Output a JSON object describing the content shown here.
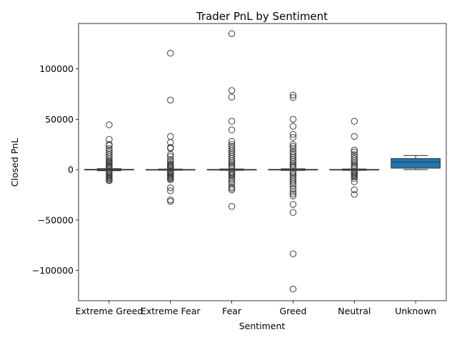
{
  "chart_data": {
    "type": "box",
    "title": "Trader PnL by Sentiment",
    "xlabel": "Sentiment",
    "ylabel": "Closed PnL",
    "ylim": [
      -130000,
      145000
    ],
    "yticks": [
      -100000,
      -50000,
      0,
      50000,
      100000
    ],
    "ytick_labels": [
      "−100000",
      "−50000",
      "0",
      "50000",
      "100000"
    ],
    "categories": [
      "Extreme Greed",
      "Extreme Fear",
      "Fear",
      "Greed",
      "Neutral",
      "Unknown"
    ],
    "grid": false,
    "legend": "none",
    "colors": {
      "box_fill": "#1f77b4",
      "line": "#3d3d3d",
      "axis": "#000000"
    },
    "boxes": [
      {
        "category": "Extreme Greed",
        "whisker_low": -1000,
        "q1": -300,
        "median": 0,
        "q3": 300,
        "whisker_high": 1000,
        "outliers": [
          44500,
          30000,
          25000,
          24000,
          21000,
          19000,
          17000,
          15000,
          13000,
          11000,
          9000,
          8000,
          7000,
          6000,
          5000,
          4000,
          3000,
          2500,
          2000,
          -2000,
          -3000,
          -4000,
          -5000,
          -6000,
          -7000,
          -8000,
          -9000,
          -10000,
          -11000
        ]
      },
      {
        "category": "Extreme Fear",
        "whisker_low": -600,
        "q1": -150,
        "median": 0,
        "q3": 150,
        "whisker_high": 600,
        "outliers": [
          115500,
          69000,
          33000,
          27000,
          22000,
          21000,
          15000,
          13000,
          10000,
          8000,
          6000,
          5000,
          4000,
          3000,
          2000,
          1500,
          -1500,
          -2000,
          -3000,
          -4000,
          -5000,
          -6000,
          -7000,
          -8000,
          -9000,
          -10000,
          -18000,
          -21000,
          -30000,
          -31500
        ]
      },
      {
        "category": "Fear",
        "whisker_low": -700,
        "q1": -200,
        "median": 0,
        "q3": 200,
        "whisker_high": 700,
        "outliers": [
          135000,
          78500,
          72000,
          48000,
          39500,
          28000,
          25000,
          23000,
          21000,
          19000,
          17000,
          15000,
          13000,
          11000,
          9000,
          7000,
          5500,
          4000,
          3000,
          2000,
          -2000,
          -3000,
          -4000,
          -5000,
          -6000,
          -8000,
          -10000,
          -12000,
          -14000,
          -17000,
          -18500,
          -20000,
          -36500
        ]
      },
      {
        "category": "Greed",
        "whisker_low": -800,
        "q1": -250,
        "median": 0,
        "q3": 250,
        "whisker_high": 800,
        "outliers": [
          74000,
          71500,
          50000,
          43000,
          35000,
          32000,
          25000,
          23000,
          21000,
          18000,
          16000,
          14000,
          12000,
          10000,
          8000,
          6000,
          4500,
          3000,
          2000,
          -2000,
          -3000,
          -4500,
          -6000,
          -8000,
          -10000,
          -12000,
          -14000,
          -16000,
          -19000,
          -22000,
          -24000,
          -26000,
          -34500,
          -42500,
          -83500,
          -118500
        ]
      },
      {
        "category": "Neutral",
        "whisker_low": -700,
        "q1": -200,
        "median": 0,
        "q3": 200,
        "whisker_high": 700,
        "outliers": [
          48000,
          33000,
          19500,
          17500,
          15000,
          13000,
          11000,
          9000,
          7000,
          5500,
          4000,
          3000,
          2000,
          -2000,
          -3000,
          -4000,
          -5000,
          -6000,
          -7000,
          -9000,
          -12000,
          -20000,
          -24500
        ]
      },
      {
        "category": "Unknown",
        "whisker_low": 0,
        "q1": 1500,
        "median": 7500,
        "q3": 11000,
        "whisker_high": 14000,
        "outliers": []
      }
    ]
  }
}
